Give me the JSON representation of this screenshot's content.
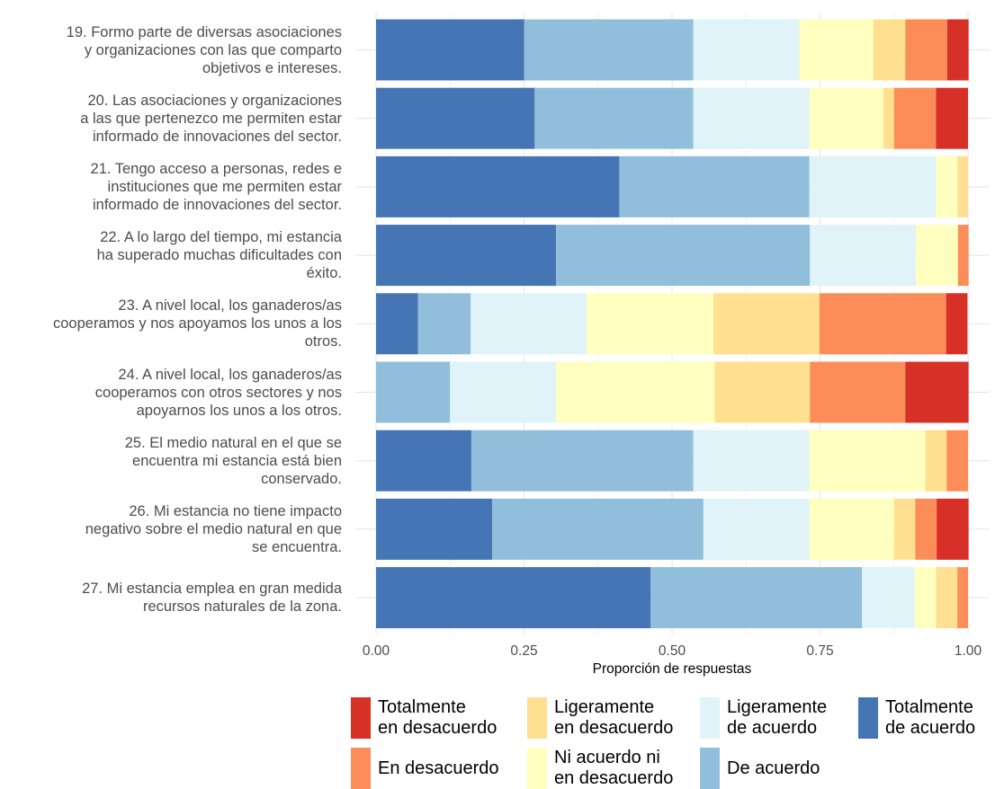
{
  "chart_data": {
    "type": "bar",
    "orientation": "horizontal",
    "stacked": "proportion",
    "xlabel": "Proporción de respuestas",
    "xlim": [
      0,
      1
    ],
    "xticks": [
      "0.00",
      "0.25",
      "0.50",
      "0.75",
      "1.00"
    ],
    "grid": true,
    "legend_position": "bottom",
    "categories": [
      "19. Formo parte de diversas asociaciones y organizaciones con las que comparto objetivos e intereses.",
      "20. Las asociaciones y organizaciones a las que pertenezco me permiten estar informado de innovaciones del sector.",
      "21. Tengo acceso a personas, redes e instituciones que me permiten estar informado de innovaciones del sector.",
      "22. A lo largo del tiempo, mi estancia ha superado muchas dificultades con éxito.",
      "23. A nivel local, los ganaderos/as cooperamos y nos apoyamos los unos a los otros.",
      "24. A nivel local, los ganaderos/as cooperamos con otros sectores y nos apoyarnos los unos a los otros.",
      "25. El medio natural en el que se encuentra mi estancia está bien conservado.",
      "26. Mi estancia no tiene impacto negativo sobre el medio natural en que se encuentra.",
      "27. Mi estancia emplea en gran medida recursos naturales de la zona."
    ],
    "category_lines": [
      [
        "19. Formo parte de diversas asociaciones",
        "y organizaciones con las que comparto",
        "objetivos e intereses."
      ],
      [
        "20. Las asociaciones y organizaciones",
        "a las que pertenezco me permiten estar",
        "informado de innovaciones del sector."
      ],
      [
        "21. Tengo acceso a personas, redes e",
        "instituciones que me permiten estar",
        "informado de innovaciones del sector."
      ],
      [
        "22. A lo largo del tiempo, mi estancia",
        "ha superado muchas dificultades con",
        "éxito."
      ],
      [
        "23. A nivel local, los ganaderos/as",
        "cooperamos y nos apoyamos los unos a los",
        "otros."
      ],
      [
        "24. A nivel local, los ganaderos/as",
        "cooperamos con otros sectores y nos",
        "apoyarnos los unos a los otros."
      ],
      [
        "25. El medio natural en el que se",
        "encuentra mi estancia está bien",
        "conservado."
      ],
      [
        "26. Mi estancia no tiene impacto",
        "negativo sobre el medio natural en que",
        "se encuentra."
      ],
      [
        "27. Mi estancia emplea en gran medida",
        "recursos naturales de la zona."
      ]
    ],
    "series": [
      {
        "name": "Totalmente de acuerdo",
        "color": "#4575b4",
        "values": [
          0.25,
          0.268,
          0.411,
          0.304,
          0.071,
          0.0,
          0.161,
          0.196,
          0.464
        ]
      },
      {
        "name": "De acuerdo",
        "color": "#91bfdb",
        "values": [
          0.286,
          0.268,
          0.321,
          0.429,
          0.089,
          0.125,
          0.375,
          0.357,
          0.357
        ]
      },
      {
        "name": "Ligeramente de acuerdo",
        "color": "#e0f3f8",
        "values": [
          0.179,
          0.196,
          0.214,
          0.179,
          0.196,
          0.179,
          0.196,
          0.179,
          0.089
        ]
      },
      {
        "name": "Ni acuerdo ni en desacuerdo",
        "color": "#ffffbf",
        "values": [
          0.125,
          0.125,
          0.036,
          0.071,
          0.214,
          0.268,
          0.196,
          0.143,
          0.036
        ]
      },
      {
        "name": "Ligeramente en desacuerdo",
        "color": "#fee090",
        "values": [
          0.054,
          0.018,
          0.018,
          0.0,
          0.179,
          0.161,
          0.036,
          0.036,
          0.036
        ]
      },
      {
        "name": "En desacuerdo",
        "color": "#fc8d59",
        "values": [
          0.071,
          0.071,
          0.0,
          0.018,
          0.214,
          0.161,
          0.036,
          0.036,
          0.018
        ]
      },
      {
        "name": "Totalmente en desacuerdo",
        "color": "#d73027",
        "values": [
          0.036,
          0.054,
          0.0,
          0.0,
          0.036,
          0.107,
          0.0,
          0.054,
          0.0
        ]
      }
    ]
  },
  "legend": [
    {
      "label": "Totalmente\nen desacuerdo",
      "color": "#d73027",
      "icon": "red-square"
    },
    {
      "label": "En desacuerdo",
      "color": "#fc8d59",
      "icon": "orange-square"
    },
    {
      "label": "Ligeramente\nen desacuerdo",
      "color": "#fee090",
      "icon": "light-orange-square"
    },
    {
      "label": "Ni acuerdo ni\nen desacuerdo",
      "color": "#ffffbf",
      "icon": "pale-yellow-square"
    },
    {
      "label": "Ligeramente\nde acuerdo",
      "color": "#e0f3f8",
      "icon": "pale-blue-square"
    },
    {
      "label": "De acuerdo",
      "color": "#91bfdb",
      "icon": "light-blue-square"
    },
    {
      "label": "Totalmente\nde acuerdo",
      "color": "#4575b4",
      "icon": "dark-blue-square"
    }
  ]
}
